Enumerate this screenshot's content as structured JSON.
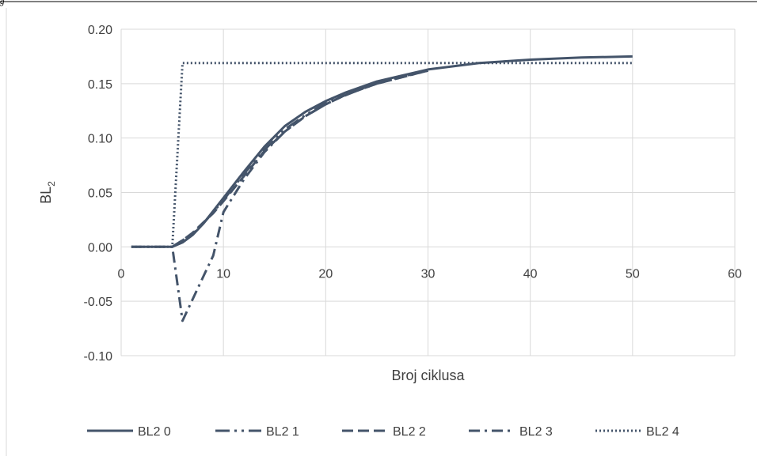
{
  "figure_number": "g",
  "chart_data": {
    "type": "line",
    "title": "",
    "xlabel": "Broj ciklusa",
    "ylabel_main": "BL",
    "ylabel_sub": "2",
    "xlim": [
      0,
      60
    ],
    "ylim": [
      -0.1,
      0.2
    ],
    "xticks": [
      0,
      10,
      20,
      30,
      40,
      50,
      60
    ],
    "yticks": [
      -0.1,
      -0.05,
      0.0,
      0.05,
      0.1,
      0.15,
      0.2
    ],
    "xtick_labels": [
      "0",
      "10",
      "20",
      "30",
      "40",
      "50",
      "60"
    ],
    "ytick_labels": [
      "-0.10",
      "-0.05",
      "0.00",
      "0.05",
      "0.10",
      "0.15",
      "0.20"
    ],
    "grid": true,
    "legend_position": "bottom",
    "colors": {
      "series": "#44546a",
      "grid": "#d9d9d9",
      "text": "#404040"
    },
    "series": [
      {
        "name": "BL2 0",
        "dash": "solid",
        "x": [
          1,
          5,
          6,
          7,
          8,
          9,
          10,
          12,
          14,
          16,
          18,
          20,
          22,
          25,
          30,
          35,
          40,
          45,
          50
        ],
        "y": [
          0.0,
          0.0,
          0.004,
          0.011,
          0.021,
          0.033,
          0.045,
          0.069,
          0.092,
          0.111,
          0.124,
          0.134,
          0.142,
          0.152,
          0.163,
          0.169,
          0.172,
          0.174,
          0.175
        ]
      },
      {
        "name": "BL2 1",
        "dash": "dashdotdot",
        "x": [
          5,
          6,
          7,
          8,
          10,
          12,
          14,
          16,
          18,
          20,
          25,
          30
        ],
        "y": [
          0.0,
          0.006,
          0.012,
          0.021,
          0.043,
          0.067,
          0.089,
          0.108,
          0.121,
          0.132,
          0.151,
          0.162
        ]
      },
      {
        "name": "BL2 2",
        "dash": "dash",
        "x": [
          5,
          6,
          7,
          8,
          9,
          10,
          12,
          14,
          16,
          18,
          20,
          22,
          25,
          30
        ],
        "y": [
          0.0,
          0.006,
          0.013,
          0.022,
          0.031,
          0.042,
          0.065,
          0.088,
          0.106,
          0.12,
          0.131,
          0.14,
          0.15,
          0.162
        ]
      },
      {
        "name": "BL2 3",
        "dash": "dashdot",
        "x": [
          1,
          5,
          6,
          7,
          8,
          9,
          10,
          12,
          14,
          16,
          18,
          20,
          22,
          25,
          30
        ],
        "y": [
          0.0,
          0.0,
          -0.068,
          -0.048,
          -0.028,
          -0.008,
          0.032,
          0.062,
          0.087,
          0.106,
          0.12,
          0.131,
          0.14,
          0.15,
          0.162
        ]
      },
      {
        "name": "BL2 4",
        "dash": "dot",
        "x": [
          1,
          5,
          6,
          50
        ],
        "y": [
          0.0,
          0.0,
          0.169,
          0.169
        ]
      }
    ]
  }
}
